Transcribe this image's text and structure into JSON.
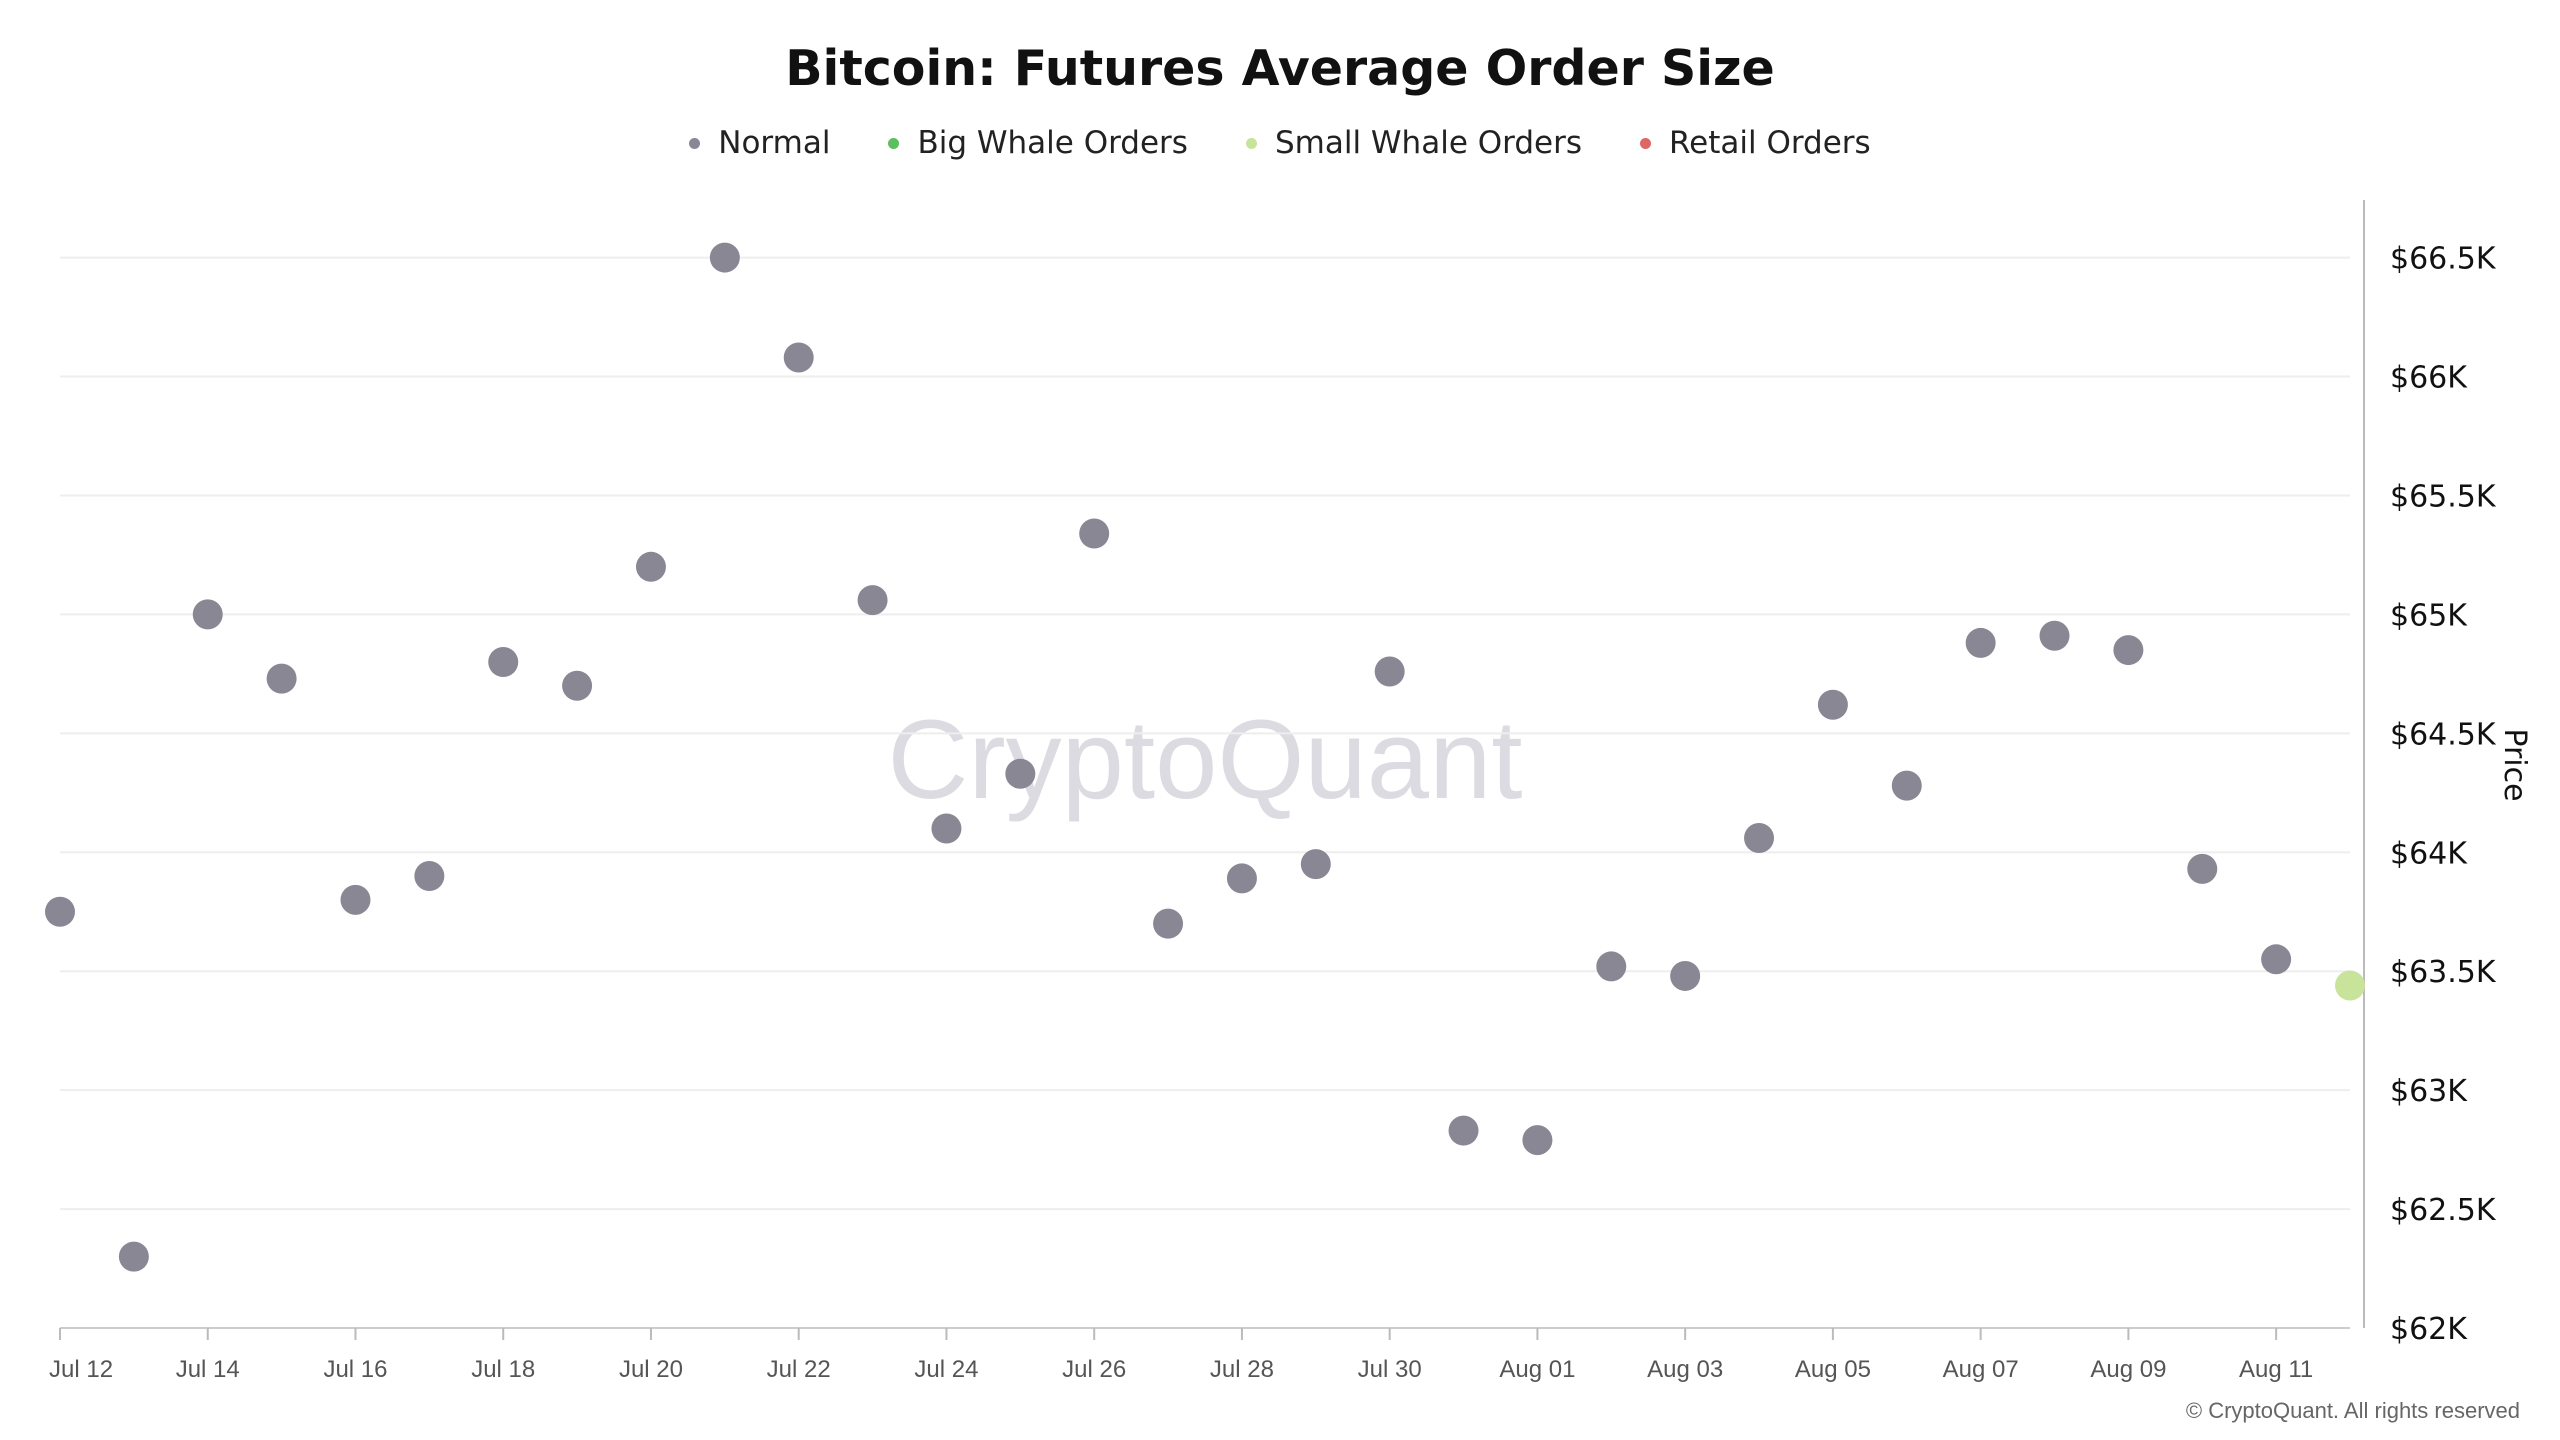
{
  "chart_data": {
    "type": "scatter",
    "title": "Bitcoin: Futures Average Order Size",
    "ylabel": "Price",
    "watermark": "CryptoQuant",
    "credit": "© CryptoQuant. All rights reserved",
    "legend_position": "top-center",
    "ylim": [
      62000,
      66700
    ],
    "y_ticks": [
      62000,
      62500,
      63000,
      63500,
      64000,
      64500,
      65000,
      65500,
      66000,
      66500
    ],
    "y_tick_labels": [
      "$62K",
      "$62.5K",
      "$63K",
      "$63.5K",
      "$64K",
      "$64.5K",
      "$65K",
      "$65.5K",
      "$66K",
      "$66.5K"
    ],
    "x_tick_labels": [
      "Jul 12",
      "Jul 14",
      "Jul 16",
      "Jul 18",
      "Jul 20",
      "Jul 22",
      "Jul 24",
      "Jul 26",
      "Jul 28",
      "Jul 30",
      "Aug 01",
      "Aug 03",
      "Aug 05",
      "Aug 07",
      "Aug 09",
      "Aug 11"
    ],
    "x_tick_dates": [
      "2024-07-12",
      "2024-07-14",
      "2024-07-16",
      "2024-07-18",
      "2024-07-20",
      "2024-07-22",
      "2024-07-24",
      "2024-07-26",
      "2024-07-28",
      "2024-07-30",
      "2024-08-01",
      "2024-08-03",
      "2024-08-05",
      "2024-08-07",
      "2024-08-09",
      "2024-08-11"
    ],
    "x_start": "2024-07-12",
    "x_end": "2024-08-12",
    "grid": "horizontal",
    "legend": [
      {
        "name": "Normal",
        "color": "#8a8794"
      },
      {
        "name": "Big Whale Orders",
        "color": "#5cbf5c"
      },
      {
        "name": "Small Whale Orders",
        "color": "#c8e49b"
      },
      {
        "name": "Retail Orders",
        "color": "#e06666"
      }
    ],
    "points": [
      {
        "x": "2024-07-12",
        "y": 63750,
        "series": "Normal"
      },
      {
        "x": "2024-07-13",
        "y": 62300,
        "series": "Normal"
      },
      {
        "x": "2024-07-14",
        "y": 65000,
        "series": "Normal"
      },
      {
        "x": "2024-07-15",
        "y": 64730,
        "series": "Normal"
      },
      {
        "x": "2024-07-16",
        "y": 63800,
        "series": "Normal"
      },
      {
        "x": "2024-07-17",
        "y": 63900,
        "series": "Normal"
      },
      {
        "x": "2024-07-18",
        "y": 64800,
        "series": "Normal"
      },
      {
        "x": "2024-07-19",
        "y": 64700,
        "series": "Normal"
      },
      {
        "x": "2024-07-20",
        "y": 65200,
        "series": "Normal"
      },
      {
        "x": "2024-07-21",
        "y": 66500,
        "series": "Normal"
      },
      {
        "x": "2024-07-22",
        "y": 66080,
        "series": "Normal"
      },
      {
        "x": "2024-07-23",
        "y": 65060,
        "series": "Normal"
      },
      {
        "x": "2024-07-24",
        "y": 64100,
        "series": "Normal"
      },
      {
        "x": "2024-07-25",
        "y": 64330,
        "series": "Normal"
      },
      {
        "x": "2024-07-26",
        "y": 65340,
        "series": "Normal"
      },
      {
        "x": "2024-07-27",
        "y": 63700,
        "series": "Normal"
      },
      {
        "x": "2024-07-28",
        "y": 63890,
        "series": "Normal"
      },
      {
        "x": "2024-07-29",
        "y": 63950,
        "series": "Normal"
      },
      {
        "x": "2024-07-30",
        "y": 64760,
        "series": "Normal"
      },
      {
        "x": "2024-07-31",
        "y": 62830,
        "series": "Normal"
      },
      {
        "x": "2024-08-01",
        "y": 62790,
        "series": "Normal"
      },
      {
        "x": "2024-08-02",
        "y": 63520,
        "series": "Normal"
      },
      {
        "x": "2024-08-03",
        "y": 63480,
        "series": "Normal"
      },
      {
        "x": "2024-08-04",
        "y": 64060,
        "series": "Normal"
      },
      {
        "x": "2024-08-05",
        "y": 64620,
        "series": "Normal"
      },
      {
        "x": "2024-08-06",
        "y": 64280,
        "series": "Normal"
      },
      {
        "x": "2024-08-07",
        "y": 64880,
        "series": "Normal"
      },
      {
        "x": "2024-08-08",
        "y": 64910,
        "series": "Normal"
      },
      {
        "x": "2024-08-09",
        "y": 64850,
        "series": "Normal"
      },
      {
        "x": "2024-08-10",
        "y": 63930,
        "series": "Normal"
      },
      {
        "x": "2024-08-11",
        "y": 63550,
        "series": "Normal"
      },
      {
        "x": "2024-08-12",
        "y": 63440,
        "series": "Small Whale Orders"
      }
    ]
  }
}
